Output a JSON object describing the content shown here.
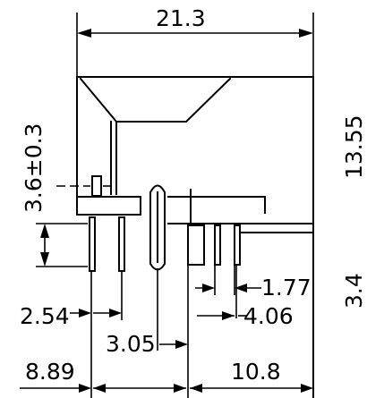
{
  "dimensions": {
    "overall_width": "21.3",
    "overall_height": "13.55",
    "pin_offset_height": "3.6±0.3",
    "right_height": "3.4",
    "pin_pitch_a": "1.77",
    "pin_pitch_b": "4.06",
    "pin_pitch_c": "2.54",
    "post_offset": "3.05",
    "left_span": "8.89",
    "right_span": "10.8"
  }
}
